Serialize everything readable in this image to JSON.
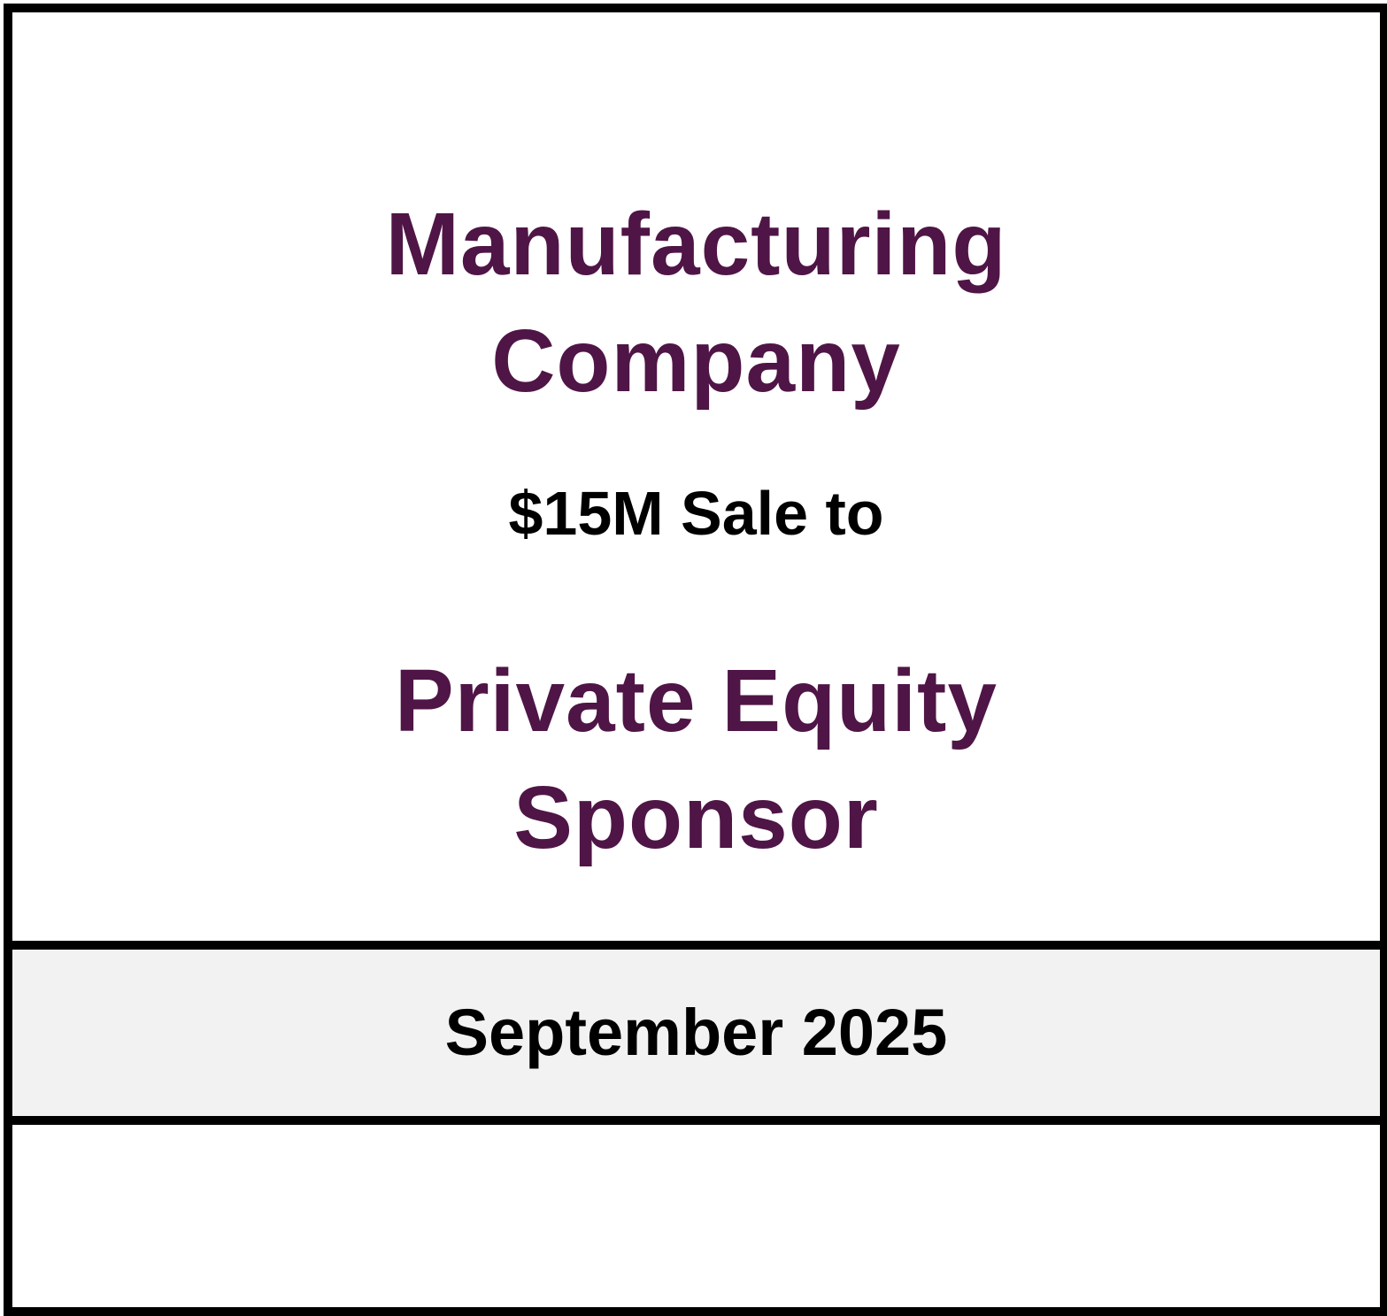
{
  "tombstone": {
    "company_line_1": "Manufacturing",
    "company_line_2": "Company",
    "deal_text": "$15M Sale to",
    "buyer_line_1": "Private Equity",
    "buyer_line_2": "Sponsor",
    "date": "September 2025"
  },
  "colors": {
    "accent": "#4f1546",
    "text": "#000000",
    "border": "#000000",
    "date_band": "#f2f2f2",
    "background": "#ffffff"
  }
}
